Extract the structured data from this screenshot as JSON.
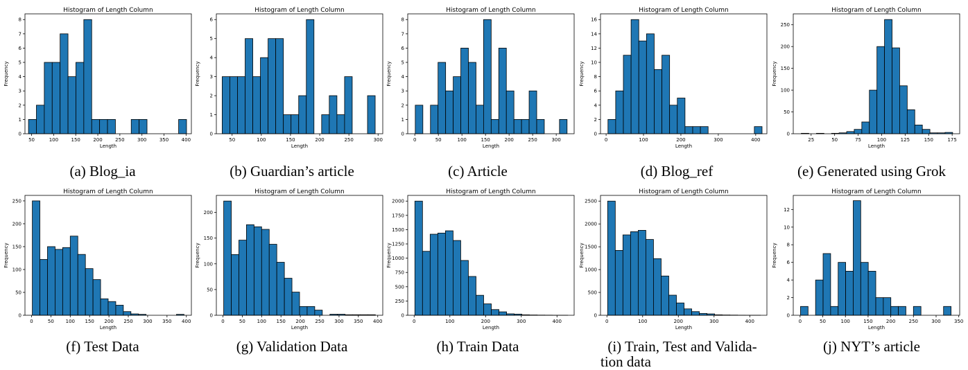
{
  "bar_color": "#1f77b4",
  "chart_data": [
    {
      "type": "bar",
      "title": "Histogram of Length Column",
      "xlabel": "Length",
      "ylabel": "Frequency",
      "caption": "(a) Blog_ia",
      "xlim": [
        35,
        412
      ],
      "ylim": [
        0,
        8.4
      ],
      "xticks": [
        50,
        100,
        150,
        200,
        250,
        300,
        350,
        400
      ],
      "yticks": [
        0,
        1,
        2,
        3,
        4,
        5,
        6,
        7,
        8
      ],
      "bin_start": 43,
      "bin_width": 17.9,
      "values": [
        1,
        2,
        5,
        5,
        7,
        4,
        5,
        8,
        1,
        1,
        1,
        0,
        0,
        1,
        1,
        0,
        0,
        0,
        0,
        1
      ]
    },
    {
      "type": "bar",
      "title": "Histogram of Length Column",
      "xlabel": "Length",
      "ylabel": "Frequency",
      "caption": "(b) Guardian’s article",
      "xlim": [
        23,
        308
      ],
      "ylim": [
        0,
        6.3
      ],
      "xticks": [
        50,
        100,
        150,
        200,
        250,
        300
      ],
      "yticks": [
        0,
        1,
        2,
        3,
        4,
        5,
        6
      ],
      "bin_start": 33,
      "bin_width": 13.1,
      "values": [
        3,
        3,
        3,
        5,
        3,
        4,
        5,
        5,
        1,
        1,
        2,
        6,
        0,
        1,
        2,
        1,
        3,
        0,
        0,
        2
      ]
    },
    {
      "type": "bar",
      "title": "Histogram of Length Column",
      "xlabel": "Length",
      "ylabel": "Frequency",
      "caption": "(c) Article",
      "xlim": [
        -15,
        338
      ],
      "ylim": [
        0,
        8.4
      ],
      "xticks": [
        0,
        50,
        100,
        150,
        200,
        250,
        300
      ],
      "yticks": [
        0,
        1,
        2,
        3,
        4,
        5,
        6,
        7,
        8
      ],
      "bin_start": 1,
      "bin_width": 16.1,
      "values": [
        2,
        0,
        2,
        5,
        3,
        4,
        6,
        5,
        2,
        8,
        1,
        6,
        3,
        1,
        1,
        3,
        1,
        0,
        0,
        1
      ]
    },
    {
      "type": "bar",
      "title": "Histogram of Length Column",
      "xlabel": "Length",
      "ylabel": "Frequency",
      "caption": "(d) Blog_ref",
      "xlim": [
        -15,
        430
      ],
      "ylim": [
        0,
        16.8
      ],
      "xticks": [
        0,
        100,
        200,
        300,
        400
      ],
      "yticks": [
        0,
        2,
        4,
        6,
        8,
        10,
        12,
        14,
        16
      ],
      "bin_start": 5,
      "bin_width": 20.6,
      "values": [
        2,
        6,
        11,
        16,
        13,
        14,
        9,
        11,
        4,
        5,
        1,
        1,
        1,
        0,
        0,
        0,
        0,
        0,
        0,
        1
      ]
    },
    {
      "type": "bar",
      "title": "Histogram of Length Column",
      "xlabel": "Length",
      "ylabel": "Frequency",
      "caption": "(e) Generated using Grok",
      "xlim": [
        6,
        183
      ],
      "ylim": [
        0,
        275
      ],
      "xticks": [
        25,
        50,
        75,
        100,
        125,
        150,
        175
      ],
      "yticks": [
        0,
        50,
        100,
        150,
        200,
        250
      ],
      "bin_start": 14.5,
      "bin_width": 8.05,
      "values": [
        1,
        0,
        1,
        0,
        1,
        2,
        5,
        10,
        27,
        100,
        200,
        262,
        197,
        110,
        55,
        20,
        10,
        2,
        2,
        3
      ]
    },
    {
      "type": "bar",
      "title": "Histogram of Length Column",
      "xlabel": "Length",
      "ylabel": "Frequency",
      "caption": "(f) Test Data",
      "xlim": [
        -17,
        413
      ],
      "ylim": [
        0,
        262
      ],
      "xticks": [
        0,
        50,
        100,
        150,
        200,
        250,
        300,
        350,
        400
      ],
      "yticks": [
        0,
        50,
        100,
        150,
        200,
        250
      ],
      "bin_start": 2,
      "bin_width": 19.6,
      "values": [
        250,
        122,
        150,
        144,
        148,
        173,
        133,
        102,
        78,
        36,
        30,
        22,
        8,
        3,
        2,
        0,
        0,
        0,
        0,
        2
      ]
    },
    {
      "type": "bar",
      "title": "Histogram of Length Column",
      "xlabel": "Length",
      "ylabel": "Frequency",
      "caption": "(g) Validation Data",
      "xlim": [
        -17,
        413
      ],
      "ylim": [
        0,
        233
      ],
      "xticks": [
        0,
        50,
        100,
        150,
        200,
        250,
        300,
        350,
        400
      ],
      "yticks": [
        0,
        50,
        100,
        150,
        200
      ],
      "bin_start": 2,
      "bin_width": 19.6,
      "values": [
        222,
        118,
        146,
        176,
        172,
        167,
        138,
        103,
        72,
        45,
        17,
        17,
        10,
        0,
        2,
        2,
        1,
        1,
        1,
        1
      ]
    },
    {
      "type": "bar",
      "title": "Histogram of Length Column",
      "xlabel": "Length",
      "ylabel": "Frequency",
      "caption": "(h) Train Data",
      "xlim": [
        -18,
        448
      ],
      "ylim": [
        0,
        2100
      ],
      "xticks": [
        0,
        100,
        200,
        300,
        400
      ],
      "yticks": [
        0,
        250,
        500,
        750,
        1000,
        1250,
        1500,
        1750,
        2000
      ],
      "bin_start": 2,
      "bin_width": 21.4,
      "values": [
        2000,
        1120,
        1420,
        1440,
        1480,
        1310,
        960,
        680,
        350,
        200,
        100,
        60,
        25,
        20,
        8,
        5,
        3,
        2,
        1,
        1
      ]
    },
    {
      "type": "bar",
      "title": "Histogram of Length Column",
      "xlabel": "Length",
      "ylabel": "Frequency",
      "caption": "(i) Train, Test and Validation data",
      "caption_lines": [
        "(i) Train, Test and Valida-",
        "tion data"
      ],
      "xlim": [
        -18,
        448
      ],
      "ylim": [
        0,
        2625
      ],
      "xticks": [
        0,
        100,
        200,
        300,
        400
      ],
      "yticks": [
        0,
        500,
        1000,
        1500,
        2000,
        2500
      ],
      "bin_start": 2,
      "bin_width": 21.4,
      "values": [
        2500,
        1420,
        1760,
        1830,
        1860,
        1660,
        1240,
        860,
        440,
        270,
        140,
        80,
        40,
        30,
        10,
        6,
        4,
        2,
        1,
        1
      ]
    },
    {
      "type": "bar",
      "title": "Histogram of Length Column",
      "xlabel": "Length",
      "ylabel": "Frequency",
      "caption": "(j) NYT’s article",
      "xlim": [
        -15,
        352
      ],
      "ylim": [
        0,
        13.6
      ],
      "xticks": [
        0,
        50,
        100,
        150,
        200,
        250,
        300,
        350
      ],
      "yticks": [
        0,
        2,
        4,
        6,
        8,
        10,
        12
      ],
      "bin_start": 1,
      "bin_width": 16.6,
      "values": [
        1,
        0,
        4,
        7,
        1,
        6,
        5,
        13,
        6,
        5,
        2,
        2,
        1,
        1,
        0,
        1,
        0,
        0,
        0,
        1
      ]
    }
  ]
}
